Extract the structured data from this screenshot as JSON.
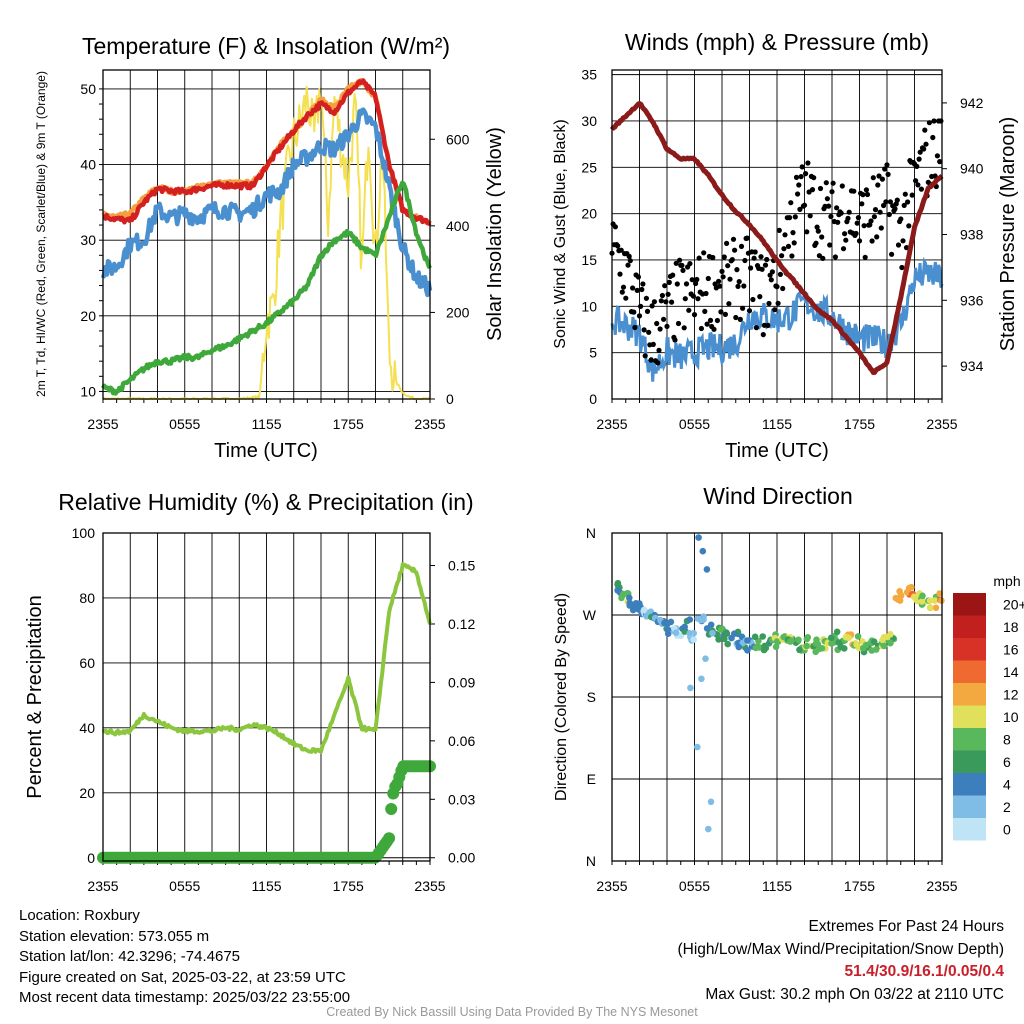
{
  "chart_data": [
    {
      "type": "line",
      "title": "Temperature (F) & Insolation (W/m²)",
      "xlabel": "Time (UTC)",
      "ylabel": "2m T, Td, HI/WC (Red, Green, Scarlet/Blue) & 9m T (Orange)",
      "y2label": "Solar Insolation (Yellow)",
      "x_ticks": [
        "2355",
        "0555",
        "1155",
        "1755",
        "2355"
      ],
      "ylim": [
        9,
        52.5
      ],
      "y_ticks": [
        10,
        20,
        30,
        40,
        50
      ],
      "y2lim": [
        0,
        760
      ],
      "y2_ticks": [
        0,
        200,
        400,
        600
      ],
      "grid": true,
      "series": [
        {
          "name": "9m T",
          "color": "#f4a040",
          "x_hours": [
            0,
            1,
            2,
            3,
            4,
            5,
            6,
            7,
            8,
            9,
            10,
            11,
            12,
            13,
            14,
            15,
            16,
            17,
            18,
            19,
            20,
            21,
            22,
            23,
            24
          ],
          "values": [
            33.5,
            33,
            33.5,
            35.5,
            37,
            36.5,
            36.5,
            37,
            37.5,
            37.5,
            37.5,
            37.5,
            40,
            42.5,
            44.5,
            46.5,
            48.5,
            47.5,
            50,
            51,
            49,
            40,
            34,
            33,
            32.5
          ]
        },
        {
          "name": "2m T",
          "color": "#d42020",
          "x_hours": [
            0,
            1,
            2,
            3,
            4,
            5,
            6,
            7,
            8,
            9,
            10,
            11,
            12,
            13,
            14,
            15,
            16,
            17,
            18,
            19,
            20,
            21,
            22,
            23,
            24
          ],
          "values": [
            33.2,
            32.8,
            32.5,
            35,
            36.8,
            36.5,
            36.4,
            36.8,
            37.2,
            37.3,
            37.2,
            37.2,
            39.8,
            42.2,
            44.5,
            46.5,
            48,
            47,
            49.5,
            51,
            49,
            40,
            34,
            33,
            32.4
          ]
        },
        {
          "name": "HI/WC",
          "color": "#4a90d0",
          "x_hours": [
            0,
            1,
            2,
            3,
            4,
            5,
            6,
            7,
            8,
            9,
            10,
            11,
            12,
            13,
            14,
            15,
            16,
            17,
            18,
            19,
            20,
            21,
            22,
            23,
            24
          ],
          "values": [
            26,
            26.5,
            29.5,
            30,
            34,
            33,
            33.5,
            33,
            34,
            34,
            33.5,
            34,
            36,
            36.5,
            40,
            41,
            42.5,
            42,
            44,
            46.5,
            45,
            37,
            29,
            25,
            23.5
          ]
        },
        {
          "name": "Td",
          "color": "#3fa83a",
          "x_hours": [
            0,
            1,
            2,
            3,
            4,
            5,
            6,
            7,
            8,
            9,
            10,
            11,
            12,
            13,
            14,
            15,
            16,
            17,
            18,
            19,
            20,
            21,
            22,
            23,
            24
          ],
          "values": [
            10.5,
            10,
            11.5,
            13,
            14,
            14,
            14.5,
            14.5,
            15.5,
            16,
            17,
            18,
            19,
            20.5,
            22,
            24,
            28,
            30,
            31,
            29,
            28,
            33,
            38,
            31,
            26
          ]
        },
        {
          "name": "Solar Insolation",
          "color": "#f4e050",
          "axis": "right",
          "x_hours": [
            0,
            2,
            4,
            6,
            8,
            10,
            11.5,
            12,
            12.5,
            13,
            13.5,
            14,
            14.5,
            15,
            15.5,
            16,
            16.5,
            17,
            17.5,
            18,
            18.5,
            19,
            19.5,
            20,
            20.5,
            21,
            21.5,
            22,
            22.5,
            23,
            24
          ],
          "values": [
            0,
            0,
            0,
            0,
            0,
            0,
            5,
            180,
            220,
            400,
            520,
            600,
            640,
            700,
            600,
            730,
            400,
            700,
            580,
            500,
            680,
            300,
            640,
            320,
            600,
            100,
            40,
            15,
            5,
            0,
            0
          ]
        }
      ]
    },
    {
      "type": "scatter",
      "title": "Winds (mph) & Pressure (mb)",
      "xlabel": "Time (UTC)",
      "ylabel": "Sonic Wind & Gust (Blue, Black)",
      "y2label": "Station Pressure (Maroon)",
      "x_ticks": [
        "2355",
        "0555",
        "1155",
        "1755",
        "2355"
      ],
      "ylim": [
        0,
        35.5
      ],
      "y_ticks": [
        0,
        5,
        10,
        15,
        20,
        25,
        30,
        35
      ],
      "y2lim": [
        933,
        943
      ],
      "y2_ticks": [
        934,
        936,
        938,
        940,
        942
      ],
      "grid": true,
      "series": [
        {
          "name": "Sonic Wind",
          "color": "#4a90d0",
          "x_hours": [
            0,
            1,
            2,
            3,
            4,
            5,
            6,
            7,
            8,
            9,
            10,
            11,
            12,
            13,
            14,
            15,
            16,
            17,
            18,
            19,
            20,
            21,
            22,
            23,
            24
          ],
          "values": [
            8.5,
            8,
            7,
            3,
            5,
            4.5,
            5,
            5.5,
            5.5,
            6,
            9,
            9,
            8.5,
            9,
            10.5,
            9.5,
            9,
            7.5,
            6.5,
            6.5,
            6,
            8,
            13,
            13.5,
            13
          ]
        },
        {
          "name": "Gust",
          "color": "#000000",
          "x_hours": [
            0,
            1,
            2,
            3,
            4,
            5,
            6,
            7,
            8,
            9,
            10,
            11,
            12,
            13,
            14,
            15,
            16,
            17,
            18,
            19,
            20,
            21,
            22,
            23,
            24
          ],
          "values": [
            16,
            14,
            9,
            7,
            9,
            11,
            11,
            12,
            12,
            13,
            13,
            11,
            13,
            19,
            22,
            20,
            19,
            21,
            19,
            20,
            21,
            18,
            23,
            26,
            28
          ]
        },
        {
          "name": "Station Pressure",
          "color": "#8b1a1a",
          "axis": "right",
          "x_hours": [
            0,
            1,
            2,
            3,
            4,
            5,
            6,
            7,
            8,
            9,
            10,
            11,
            12,
            13,
            14,
            15,
            16,
            17,
            18,
            19,
            20,
            21,
            22,
            23,
            24
          ],
          "values": [
            941.2,
            941.6,
            942,
            941.4,
            940.6,
            940.3,
            940.3,
            939.8,
            939.2,
            938.7,
            938.3,
            937.8,
            937.2,
            936.7,
            936.2,
            935.7,
            935.4,
            934.9,
            934.4,
            933.8,
            934.1,
            936.1,
            938.2,
            939.4,
            939.8
          ]
        }
      ]
    },
    {
      "type": "line",
      "title": "Relative Humidity (%) & Precipitation (in)",
      "xlabel": "",
      "ylabel": "Percent & Precipitation",
      "x_ticks": [
        "2355",
        "0555",
        "1155",
        "1755",
        "2355"
      ],
      "ylim": [
        -1,
        100
      ],
      "y_ticks": [
        0,
        20,
        40,
        60,
        80,
        100
      ],
      "y2lim": [
        -0.00167,
        0.1667
      ],
      "y2_ticks": [
        "0.00",
        "0.03",
        "0.06",
        "0.09",
        "0.12",
        "0.15"
      ],
      "grid": true,
      "series": [
        {
          "name": "Relative Humidity",
          "color": "#8cc63f",
          "x_hours": [
            0,
            1,
            2,
            3,
            4,
            5,
            6,
            7,
            8,
            9,
            10,
            11,
            12,
            13,
            14,
            15,
            16,
            17,
            18,
            19,
            20,
            21,
            22,
            23,
            24
          ],
          "values": [
            39,
            38.5,
            39,
            44,
            42,
            40,
            39,
            39,
            39,
            40,
            39.5,
            41,
            40,
            38,
            35,
            33,
            33,
            44,
            55,
            40,
            39,
            76,
            90,
            88,
            72
          ]
        },
        {
          "name": "Precipitation",
          "color": "#3fa83a",
          "axis": "right",
          "x_hours": [
            0,
            4,
            8,
            12,
            16,
            20,
            21,
            21.2,
            21.4,
            21.6,
            22,
            23,
            24
          ],
          "values": [
            0,
            0,
            0,
            0,
            0,
            0,
            0.01,
            0.03,
            0.036,
            0.038,
            0.047,
            0.047,
            0.047
          ]
        }
      ]
    },
    {
      "type": "scatter",
      "title": "Wind Direction",
      "ylabel": "Direction (Colored By Speed)",
      "x_ticks": [
        "2355",
        "0555",
        "1155",
        "1755",
        "2355"
      ],
      "y_ticks": [
        "N",
        "E",
        "S",
        "W",
        "N"
      ],
      "grid": true,
      "colorbar": {
        "title": "mph",
        "labels": [
          "0",
          "2",
          "4",
          "6",
          "8",
          "10",
          "12",
          "14",
          "16",
          "18",
          "20+"
        ],
        "colors": [
          "#bfe4f5",
          "#7fbde6",
          "#3d7ebd",
          "#3a9a5c",
          "#5ab85c",
          "#e0e05a",
          "#f4a840",
          "#ee6a30",
          "#d83226",
          "#c21f1f",
          "#9b1515"
        ]
      },
      "series": [
        {
          "name": "direction",
          "x_hours": [
            0,
            0.6,
            1.2,
            1.6,
            2.2,
            2.8,
            3.3,
            3.9,
            4.5,
            5.1,
            5.6,
            6.2,
            6.8,
            7.5,
            8,
            8.6,
            9.2,
            9.8,
            10.4,
            11,
            11.6,
            12.2,
            12.8,
            13.4,
            14,
            14.6,
            15.2,
            15.8,
            16.4,
            17,
            17.6,
            18.2,
            18.8,
            19.4,
            20,
            20.6,
            21.3,
            21.9,
            22.5,
            23.1,
            23.7
          ],
          "directions_deg": [
            300,
            288,
            282,
            278,
            272,
            268,
            262,
            256,
            252,
            258,
            248,
            262,
            255,
            250,
            245,
            245,
            240,
            238,
            240,
            238,
            242,
            245,
            240,
            238,
            240,
            236,
            240,
            245,
            238,
            242,
            240,
            236,
            238,
            240,
            245,
            290,
            296,
            290,
            286,
            284,
            287
          ],
          "speeds_mph": [
            6,
            9,
            4,
            6,
            3,
            5,
            4,
            6,
            2,
            6,
            3,
            4,
            6,
            8,
            6,
            5,
            5,
            4,
            8,
            7,
            9,
            10,
            9,
            8,
            10,
            9,
            10,
            8,
            9,
            11,
            10,
            9,
            8,
            10,
            9,
            13,
            14,
            12,
            10,
            11,
            13
          ]
        }
      ]
    }
  ],
  "info": {
    "location": "Location: Roxbury",
    "elevation": "Station elevation: 573.055 m",
    "latlon": "Station lat/lon: 42.3296; -74.4675",
    "created": "Figure created on Sat, 2025-03-22, at 23:59 UTC",
    "recent": "Most recent data timestamp: 2025/03/22 23:55:00"
  },
  "extremes": {
    "title": "Extremes For Past 24 Hours",
    "legend": "(High/Low/Max Wind/Precipitation/Snow Depth)",
    "values": "51.4/30.9/16.1/0.05/0.4",
    "gust": "Max Gust: 30.2 mph On 03/22 at 2110 UTC",
    "values_color": "#c8202a"
  },
  "credit": "Created By Nick Bassill Using Data Provided By The NYS Mesonet"
}
